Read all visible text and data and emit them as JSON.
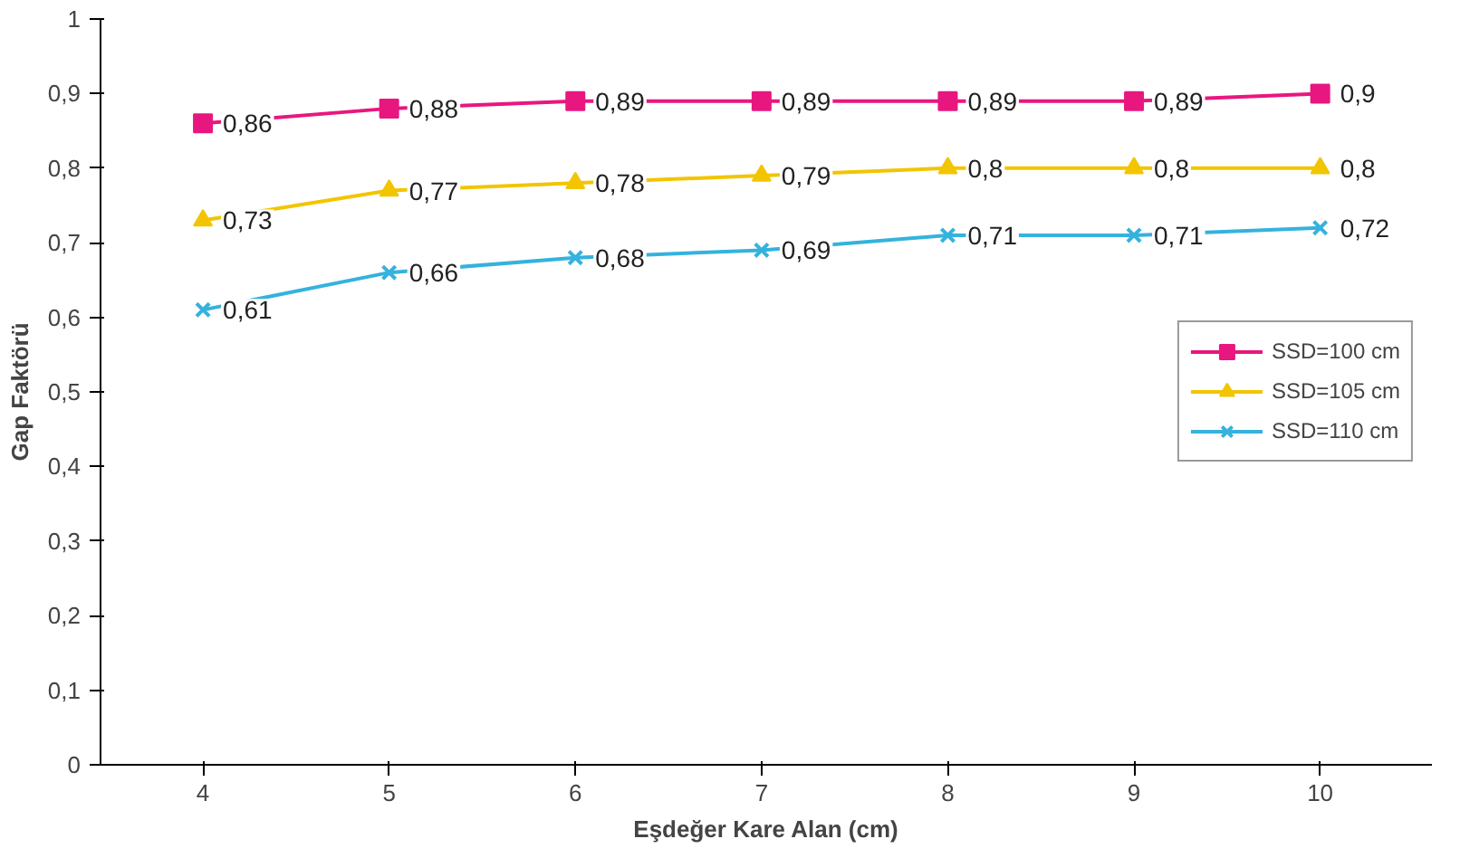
{
  "chart_data": {
    "type": "line",
    "xlabel": "Eşdeğer Kare Alan (cm)",
    "ylabel": "Gap Faktörü",
    "categories": [
      "4",
      "5",
      "6",
      "7",
      "8",
      "9",
      "10"
    ],
    "series": [
      {
        "name": "SSD=100 cm",
        "color": "#e8177f",
        "marker": "square",
        "values": [
          0.86,
          0.88,
          0.89,
          0.89,
          0.89,
          0.89,
          0.9
        ],
        "value_labels": [
          "0,86",
          "0,88",
          "0,89",
          "0,89",
          "0,89",
          "0,89",
          "0,9"
        ]
      },
      {
        "name": "SSD=105 cm",
        "color": "#f2c500",
        "marker": "triangle",
        "values": [
          0.73,
          0.77,
          0.78,
          0.79,
          0.8,
          0.8,
          0.8
        ],
        "value_labels": [
          "0,73",
          "0,77",
          "0,78",
          "0,79",
          "0,8",
          "0,8",
          "0,8"
        ]
      },
      {
        "name": "SSD=110 cm",
        "color": "#35b2dd",
        "marker": "cross",
        "values": [
          0.61,
          0.66,
          0.68,
          0.69,
          0.71,
          0.71,
          0.72
        ],
        "value_labels": [
          "0,61",
          "0,66",
          "0,68",
          "0,69",
          "0,71",
          "0,71",
          "0,72"
        ]
      }
    ],
    "ylim": [
      0,
      1
    ],
    "yticks": [
      0,
      {
        "value": 0.1,
        "label": "0,1"
      },
      {
        "value": 0.2,
        "label": "0,2"
      },
      {
        "value": 0.3,
        "label": "0,3"
      },
      {
        "value": 0.4,
        "label": "0,4"
      },
      {
        "value": 0.5,
        "label": "0,5"
      },
      {
        "value": 0.6,
        "label": "0,6"
      },
      {
        "value": 0.7,
        "label": "0,7"
      },
      {
        "value": 0.8,
        "label": "0,8"
      },
      {
        "value": 0.9,
        "label": "0,9"
      },
      1
    ],
    "grid": false,
    "legend": "right",
    "line_style": "solid"
  }
}
